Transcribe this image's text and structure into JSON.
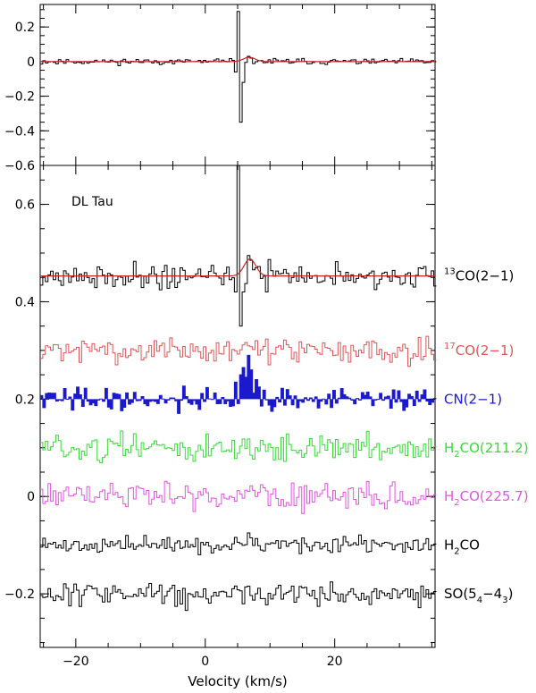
{
  "chart_data": {
    "type": "line",
    "object_label": "DL Tau",
    "xlabel": "Velocity (km/s)",
    "xlim": [
      -25.5,
      35.5
    ],
    "x_ticks": [
      -20,
      0,
      20
    ],
    "panels": [
      {
        "id": "residual",
        "ylim": [
          -0.6,
          0.33
        ],
        "y_ticks": [
          0.2,
          0,
          -0.2,
          -0.4,
          -0.6
        ],
        "series": [
          {
            "style": "step",
            "color": "#000000",
            "baseline": 0,
            "noise": 0.008,
            "seed": 11,
            "features": [
              {
                "x": 4.9,
                "value": -0.06
              },
              {
                "x": 5.1,
                "value": 0.29
              },
              {
                "x": 5.3,
                "value": -0.58
              },
              {
                "x": 5.5,
                "value": -0.35
              },
              {
                "x": 5.7,
                "value": -0.12
              },
              {
                "x": 6.9,
                "value": 0.03
              },
              {
                "x": 7.3,
                "value": 0.02
              }
            ]
          },
          {
            "style": "line",
            "color": "#cc2222",
            "baseline": 0,
            "gaussian": {
              "center": 6.8,
              "amplitude": 0.025,
              "sigma": 0.9
            }
          }
        ]
      },
      {
        "id": "spectra",
        "ylim": [
          -0.31,
          0.68
        ],
        "y_ticks": [
          0.6,
          0.4,
          0.2,
          0,
          -0.2
        ],
        "series": [
          {
            "label": {
              "main": "CO(2−1)",
              "sup": "13"
            },
            "label_y": 0.453,
            "style": "step",
            "color": "#000000",
            "baseline": 0.453,
            "noise": 0.012,
            "seed": 21,
            "features": [
              {
                "x": 4.9,
                "value": 0.42
              },
              {
                "x": 5.1,
                "value": 0.68
              },
              {
                "x": 5.3,
                "value": 0.35
              },
              {
                "x": 5.5,
                "value": 0.35
              },
              {
                "x": 5.7,
                "value": 0.42
              },
              {
                "x": 6.9,
                "value": 0.495
              },
              {
                "x": 7.3,
                "value": 0.485
              },
              {
                "x": 7.7,
                "value": 0.47
              }
            ]
          },
          {
            "style": "line",
            "color": "#cc2222",
            "baseline": 0.453,
            "gaussian": {
              "center": 6.9,
              "amplitude": 0.035,
              "sigma": 0.9
            }
          },
          {
            "label": {
              "main": "C",
              "sup": "17",
              "tail": "O(2−1)"
            },
            "label_y": 0.3,
            "style": "step",
            "color": "#e05555",
            "baseline": 0.3,
            "noise": 0.012,
            "seed": 31
          },
          {
            "label": {
              "main": "CN(2−1)"
            },
            "label_y": 0.2,
            "style": "filled-step",
            "color": "#1a1acc",
            "baseline": 0.2,
            "noise": 0.013,
            "seed": 41,
            "features": [
              {
                "x": 4.5,
                "value": 0.22
              },
              {
                "x": 4.9,
                "value": 0.235
              },
              {
                "x": 5.3,
                "value": 0.25
              },
              {
                "x": 5.7,
                "value": 0.265
              },
              {
                "x": 6.1,
                "value": 0.245
              },
              {
                "x": 6.5,
                "value": 0.275
              },
              {
                "x": 6.9,
                "value": 0.29
              },
              {
                "x": 7.3,
                "value": 0.26
              },
              {
                "x": 7.7,
                "value": 0.24
              },
              {
                "x": 8.1,
                "value": 0.225
              }
            ]
          },
          {
            "label": {
              "main": "H",
              "sub": "2",
              "tail": "CO(211.2)"
            },
            "label_y": 0.1,
            "style": "step",
            "color": "#33dd33",
            "baseline": 0.1,
            "noise": 0.014,
            "seed": 51
          },
          {
            "label": {
              "main": "H",
              "sub": "2",
              "tail": "CO(225.7)"
            },
            "label_y": 0.0,
            "style": "step",
            "color": "#e055e0",
            "baseline": 0.0,
            "noise": 0.015,
            "seed": 61
          },
          {
            "label": {
              "main": "H",
              "sub": "2",
              "tail": "CO"
            },
            "label_y": -0.1,
            "style": "step",
            "color": "#000000",
            "baseline": -0.1,
            "noise": 0.008,
            "seed": 71,
            "features": [
              {
                "x": 6.9,
                "value": -0.075
              },
              {
                "x": 7.3,
                "value": -0.085
              }
            ]
          },
          {
            "label": {
              "main": "SO(5",
              "sub": "4",
              "mid": "−4",
              "sub2": "3",
              "tail": ")"
            },
            "label_y": -0.2,
            "style": "step",
            "color": "#000000",
            "baseline": -0.2,
            "noise": 0.013,
            "seed": 81
          }
        ]
      }
    ]
  }
}
